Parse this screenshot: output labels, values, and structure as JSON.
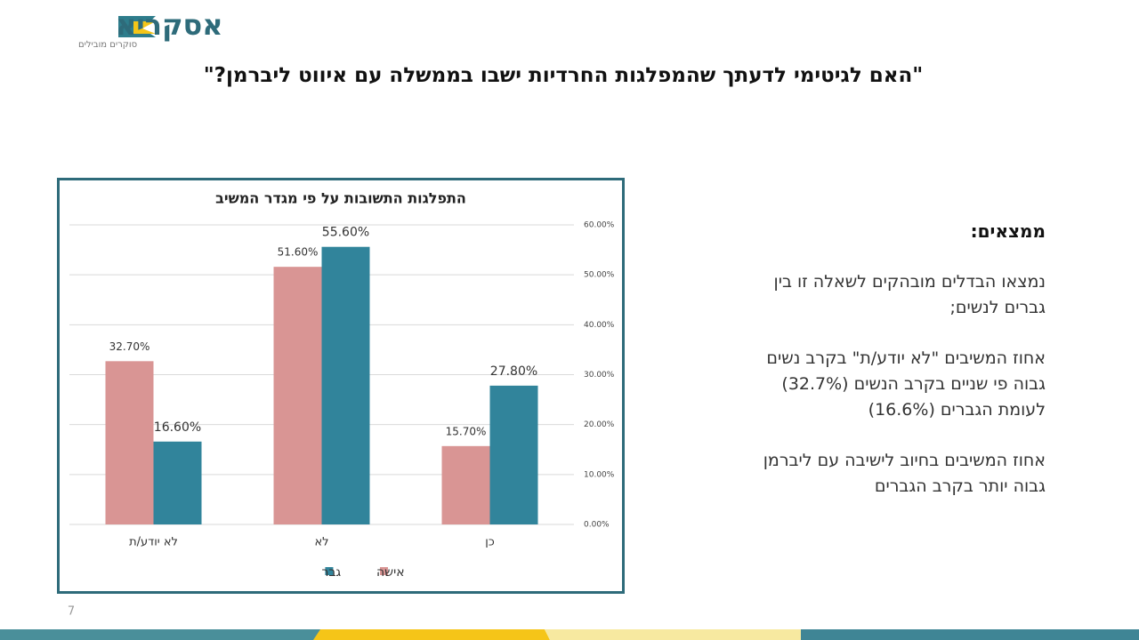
{
  "logo": {
    "name": "אסקריא",
    "tagline": "סוקרים מובילים"
  },
  "title": "\"האם לגיטימי לדעתך שהמפלגות החרדיות ישבו בממשלה עם איווט ליברמן?\"",
  "findings": {
    "heading": "ממצאים:",
    "paragraphs": [
      [
        "נמצאו הבדלים מובהקים לשאלה זו בין",
        "גברים לנשים;"
      ],
      [
        "אחוז המשיבים \"לא יודע/ת\" בקרב נשים",
        "גבוה פי שניים בקרב הנשים (32.7%)",
        "לעומת הגברים (16.6%)"
      ],
      [
        "אחוז המשיבים בחיוב לישיבה עם ליברמן",
        "גבוה יותר בקרב הגברים"
      ]
    ]
  },
  "page_number": "7",
  "chart_data": {
    "type": "bar",
    "title": "התפלגות התשובות על פי מגדר המשיב",
    "categories": [
      "כן",
      "לא",
      "לא יודע/ת"
    ],
    "series": [
      {
        "name": "אישה",
        "color": "#d99594",
        "values": [
          15.7,
          51.6,
          32.7
        ],
        "value_labels": [
          "15.70%",
          "51.60%",
          "32.70%"
        ]
      },
      {
        "name": "גבר",
        "color": "#31849b",
        "values": [
          27.8,
          55.6,
          16.6
        ],
        "value_labels": [
          "27.80%",
          "55.60%",
          "16.60%"
        ]
      }
    ],
    "ylim": [
      0,
      60
    ],
    "yticks": [
      {
        "value": 0,
        "label": "0.00%"
      },
      {
        "value": 10,
        "label": "10.00%"
      },
      {
        "value": 20,
        "label": "20.00%"
      },
      {
        "value": 30,
        "label": "30.00%"
      },
      {
        "value": 40,
        "label": "40.00%"
      },
      {
        "value": 50,
        "label": "50.00%"
      },
      {
        "value": 60,
        "label": "60.00%"
      }
    ],
    "grid": true,
    "legend": "bottom"
  }
}
